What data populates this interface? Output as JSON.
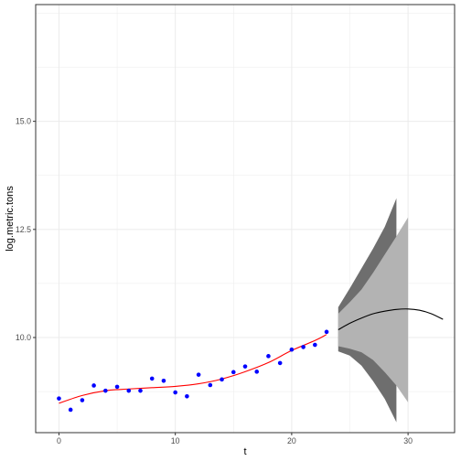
{
  "chart_data": {
    "type": "scatter",
    "xlabel": "t",
    "ylabel": "log.metric.tons",
    "xlim": [
      -2.0,
      34.0
    ],
    "ylim": [
      7.8,
      17.7
    ],
    "x_ticks": [
      0,
      10,
      20,
      30
    ],
    "x_tick_labels": [
      "0",
      "10",
      "20",
      "30"
    ],
    "y_ticks": [
      10.0,
      12.5,
      15.0
    ],
    "y_tick_labels": [
      "10.0",
      "12.5",
      "15.0"
    ],
    "grid": true,
    "legend": "none",
    "colors": {
      "points": "#0000ff",
      "fitted": "#ff0000",
      "forecast": "#000000",
      "outer_band": "#6e6e6e",
      "inner_band": "#b3b3b3",
      "grid": "#ebebeb",
      "panel_border": "#333333"
    },
    "series": [
      {
        "type": "scatter",
        "x": [
          0,
          1,
          2,
          3,
          4,
          5,
          6,
          7,
          8,
          9,
          10,
          11,
          12,
          13,
          14,
          15,
          16,
          17,
          18,
          19,
          20,
          21,
          22,
          23
        ],
        "y": [
          8.59,
          8.33,
          8.55,
          8.89,
          8.77,
          8.86,
          8.77,
          8.77,
          9.05,
          9.0,
          8.73,
          8.64,
          9.14,
          8.9,
          9.03,
          9.2,
          9.33,
          9.21,
          9.57,
          9.41,
          9.72,
          9.78,
          9.83,
          10.13
        ]
      },
      {
        "type": "line",
        "x": [
          0,
          2,
          4,
          6,
          8,
          10,
          12,
          14,
          16,
          18,
          20,
          22,
          23
        ],
        "y": [
          8.48,
          8.66,
          8.77,
          8.81,
          8.84,
          8.87,
          8.93,
          9.04,
          9.21,
          9.42,
          9.7,
          9.93,
          10.07
        ]
      },
      {
        "type": "line",
        "x": [
          24,
          25,
          26,
          27,
          28,
          29,
          30,
          31,
          32,
          33
        ],
        "y": [
          10.18,
          10.33,
          10.45,
          10.55,
          10.61,
          10.65,
          10.66,
          10.63,
          10.55,
          10.42
        ]
      },
      {
        "type": "area",
        "x": [
          24,
          25,
          26,
          27,
          28,
          29
        ],
        "upper": [
          10.7,
          11.14,
          11.6,
          12.06,
          12.56,
          13.22
        ],
        "lower": [
          9.68,
          9.58,
          9.35,
          8.99,
          8.58,
          8.04
        ]
      },
      {
        "type": "area",
        "x": [
          24,
          25,
          26,
          27,
          28,
          29,
          30
        ],
        "upper": [
          10.55,
          10.82,
          11.11,
          11.5,
          11.92,
          12.34,
          12.78
        ],
        "lower": [
          9.8,
          9.74,
          9.66,
          9.48,
          9.2,
          8.89,
          8.5
        ]
      }
    ]
  }
}
